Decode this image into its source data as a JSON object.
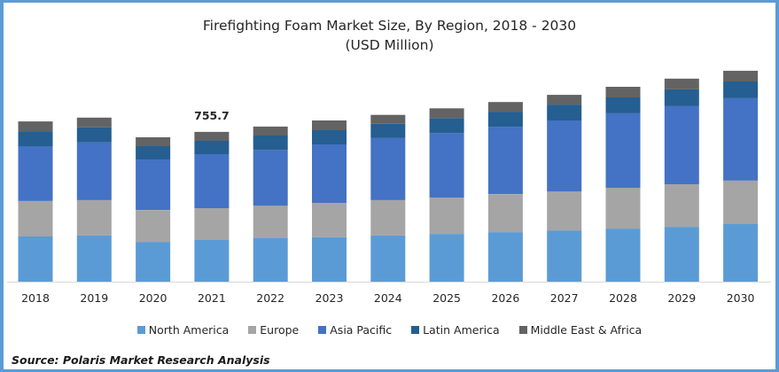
{
  "chart_data": {
    "type": "bar",
    "stacked": true,
    "title": "Firefighting Foam Market Size, By Region, 2018 - 2030",
    "subtitle": "(USD Million)",
    "xlabel": "",
    "ylabel": "",
    "ylim": [
      0,
      1100
    ],
    "grid": false,
    "legend_position": "bottom",
    "categories": [
      "2018",
      "2019",
      "2020",
      "2021",
      "2022",
      "2023",
      "2024",
      "2025",
      "2026",
      "2027",
      "2028",
      "2029",
      "2030"
    ],
    "series": [
      {
        "name": "North America",
        "color": "#5B9BD5",
        "values": [
          228,
          233,
          201,
          210,
          219,
          224,
          233,
          241,
          250,
          259,
          268,
          277,
          291
        ]
      },
      {
        "name": "Europe",
        "color": "#A5A5A5",
        "values": [
          179,
          179,
          161,
          161,
          165,
          174,
          179,
          183,
          192,
          197,
          206,
          215,
          219
        ]
      },
      {
        "name": "Asia Pacific",
        "color": "#4472C4",
        "values": [
          277,
          291,
          255,
          273,
          282,
          295,
          313,
          326,
          340,
          358,
          376,
          394,
          416
        ]
      },
      {
        "name": "Latin America",
        "color": "#255E91",
        "values": [
          76,
          76,
          67,
          67,
          72,
          72,
          72,
          76,
          76,
          80,
          80,
          85,
          85
        ]
      },
      {
        "name": "Middle East & Africa",
        "color": "#636363",
        "values": [
          49,
          49,
          45,
          45,
          45,
          49,
          45,
          49,
          49,
          49,
          54,
          54,
          54
        ]
      }
    ],
    "annotations": [
      {
        "category": "2021",
        "text": "755.7"
      }
    ]
  },
  "source": "Source: Polaris  Market Research Analysis"
}
